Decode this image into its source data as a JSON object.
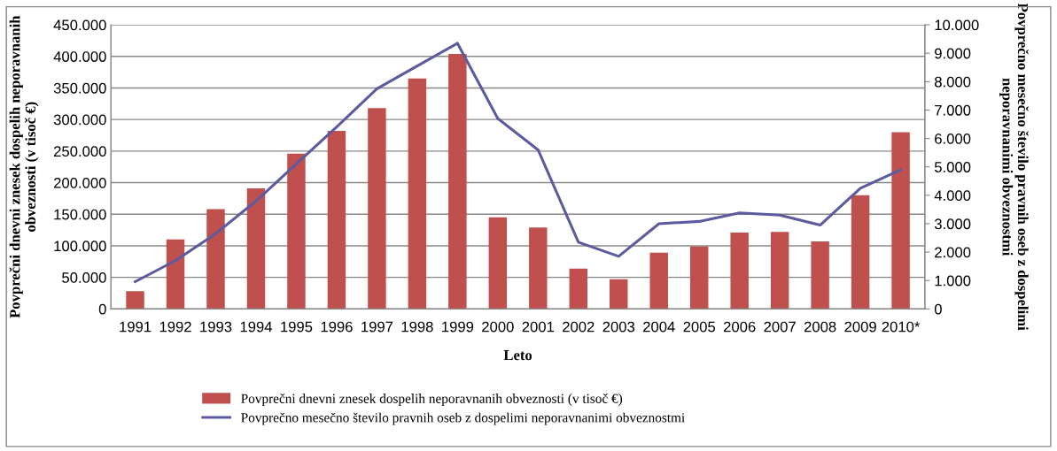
{
  "chart_data": {
    "type": "bar",
    "xlabel": "Leto",
    "ylabel": "Povprečni dnevni znesek dospelih neporavnanih obveznosti (v tisoč €)",
    "y2label": "Povprečno mesečno število pravnih oseb z dospelimi neporavnanimi obveznostmi",
    "categories": [
      "1991",
      "1992",
      "1993",
      "1994",
      "1995",
      "1996",
      "1997",
      "1998",
      "1999",
      "2000",
      "2001",
      "2002",
      "2003",
      "2004",
      "2005",
      "2006",
      "2007",
      "2008",
      "2009",
      "2010*"
    ],
    "series": [
      {
        "name": "Povprečni dnevni znesek dospelih neporavnanih obveznosti (v tisoč €)",
        "color": "#c0504d",
        "values": [
          28000,
          110000,
          158000,
          191000,
          246000,
          282000,
          318000,
          365000,
          404000,
          145000,
          129000,
          64000,
          47000,
          89000,
          99000,
          121000,
          122000,
          107000,
          180000,
          280000
        ]
      },
      {
        "name": "Povprečno mesečno število pravnih oseb z dospelimi neporavnanimi obveznostmi",
        "type": "line",
        "axis": "y2",
        "color": "#5b5b9e",
        "values": [
          960,
          1700,
          2650,
          3800,
          5100,
          6400,
          7750,
          8550,
          9350,
          6700,
          5600,
          2350,
          1850,
          3000,
          3080,
          3380,
          3300,
          2950,
          4250,
          4900
        ]
      }
    ],
    "ylim": [
      0,
      450000
    ],
    "yticks": [
      0,
      {
        "value": 50000,
        "label": "50.000"
      },
      {
        "value": 100000,
        "label": "100.000"
      },
      {
        "value": 150000,
        "label": "150.000"
      },
      {
        "value": 200000,
        "label": "200.000"
      },
      {
        "value": 250000,
        "label": "250.000"
      },
      {
        "value": 300000,
        "label": "300.000"
      },
      {
        "value": 350000,
        "label": "350.000"
      },
      {
        "value": 400000,
        "label": "400.000"
      },
      {
        "value": 450000,
        "label": "450.000"
      }
    ],
    "y2lim": [
      0,
      10000
    ],
    "y2ticks": [
      0,
      {
        "value": 1000,
        "label": "1.000"
      },
      {
        "value": 2000,
        "label": "2.000"
      },
      {
        "value": 3000,
        "label": "3.000"
      },
      {
        "value": 4000,
        "label": "4.000"
      },
      {
        "value": 5000,
        "label": "5.000"
      },
      {
        "value": 6000,
        "label": "6.000"
      },
      {
        "value": 7000,
        "label": "7.000"
      },
      {
        "value": 8000,
        "label": "8.000"
      },
      {
        "value": 9000,
        "label": "9.000"
      },
      {
        "value": 10000,
        "label": "10.000"
      }
    ],
    "grid": "y",
    "legend": "bottom",
    "marker": "none",
    "line_style": "solid"
  }
}
